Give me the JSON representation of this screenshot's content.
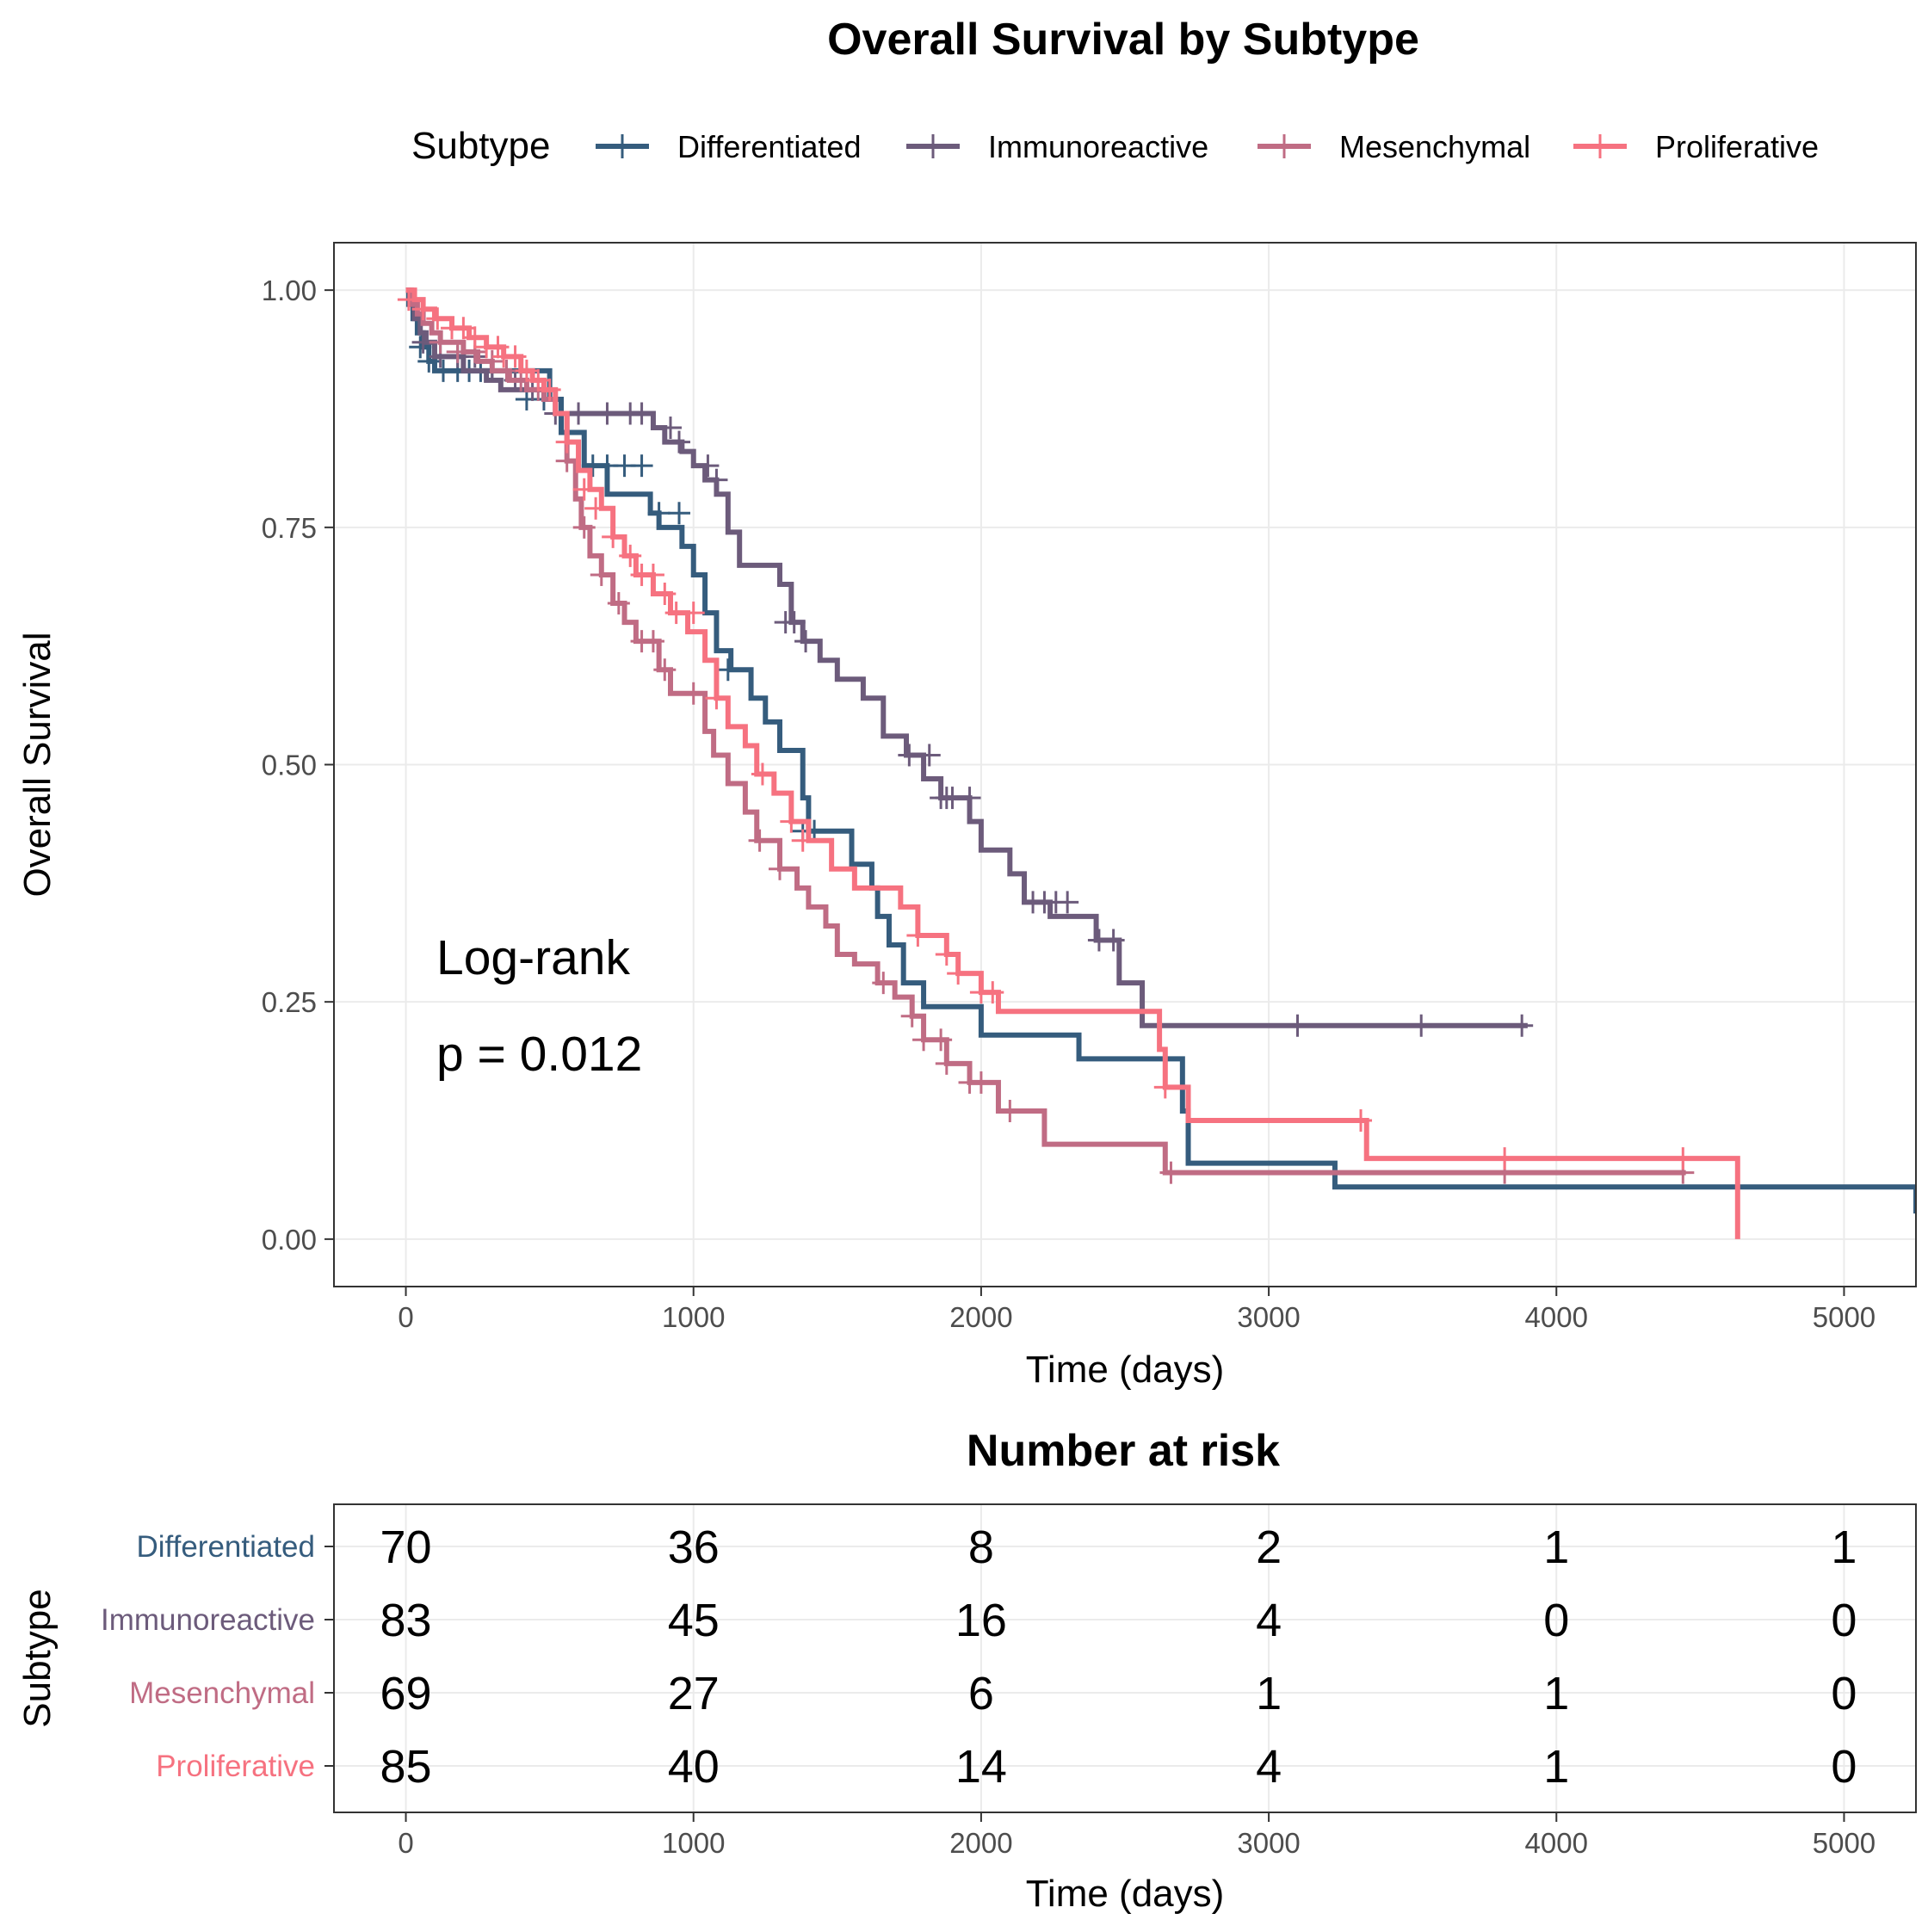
{
  "chart_data": [
    {
      "type": "line",
      "subtype": "kaplan-meier",
      "title": "Overall Survival by Subtype",
      "xlabel": "Time (days)",
      "ylabel": "Overall Survival",
      "xlim": [
        -250,
        5250
      ],
      "ylim": [
        -0.05,
        1.05
      ],
      "x_ticks": [
        0,
        1000,
        2000,
        3000,
        4000,
        5000
      ],
      "x_tick_labels": [
        "0",
        "1000",
        "2000",
        "3000",
        "4000",
        "5000"
      ],
      "y_ticks": [
        0,
        0.25,
        0.5,
        0.75,
        1.0
      ],
      "y_tick_labels": [
        "0.00",
        "0.25",
        "0.50",
        "0.75",
        "1.00"
      ],
      "grid": true,
      "legend": {
        "title": "Subtype",
        "position": "top"
      },
      "annotations": [
        "Log-rank",
        "p = 0.012"
      ],
      "series": [
        {
          "name": "Differentiated",
          "color": "#355c7d",
          "x": [
            0,
            10,
            25,
            40,
            60,
            80,
            100,
            500,
            540,
            620,
            700,
            850,
            880,
            960,
            1000,
            1040,
            1080,
            1130,
            1200,
            1250,
            1300,
            1380,
            1400,
            1550,
            1620,
            1640,
            1680,
            1730,
            1800,
            2000,
            2340,
            2700,
            2720,
            3230,
            5250
          ],
          "y": [
            1.0,
            0.985,
            0.97,
            0.955,
            0.94,
            0.925,
            0.915,
            0.885,
            0.85,
            0.815,
            0.785,
            0.765,
            0.75,
            0.73,
            0.7,
            0.66,
            0.62,
            0.6,
            0.57,
            0.545,
            0.515,
            0.465,
            0.43,
            0.395,
            0.37,
            0.34,
            0.31,
            0.27,
            0.245,
            0.215,
            0.19,
            0.135,
            0.08,
            0.055,
            0.027
          ],
          "censor_x": [
            50,
            80,
            130,
            180,
            220,
            260,
            300,
            420,
            480,
            650,
            700,
            760,
            820,
            880,
            950,
            1120,
            1380,
            1420
          ],
          "censor_y": [
            0.94,
            0.925,
            0.915,
            0.915,
            0.915,
            0.915,
            0.915,
            0.885,
            0.885,
            0.815,
            0.815,
            0.815,
            0.815,
            0.765,
            0.765,
            0.6,
            0.43,
            0.43
          ]
        },
        {
          "name": "Immunoreactive",
          "color": "#6c5b7b",
          "x": [
            0,
            15,
            30,
            50,
            70,
            100,
            200,
            280,
            330,
            480,
            520,
            860,
            900,
            960,
            1000,
            1040,
            1080,
            1120,
            1160,
            1300,
            1340,
            1380,
            1440,
            1500,
            1590,
            1660,
            1740,
            1800,
            1860,
            1960,
            2000,
            2100,
            2150,
            2240,
            2400,
            2480,
            2560,
            2600,
            3900
          ],
          "y": [
            1.0,
            0.985,
            0.97,
            0.955,
            0.945,
            0.93,
            0.915,
            0.905,
            0.895,
            0.885,
            0.87,
            0.855,
            0.84,
            0.83,
            0.815,
            0.8,
            0.785,
            0.745,
            0.71,
            0.69,
            0.65,
            0.63,
            0.61,
            0.59,
            0.57,
            0.53,
            0.51,
            0.485,
            0.465,
            0.44,
            0.41,
            0.385,
            0.355,
            0.34,
            0.315,
            0.27,
            0.225,
            0.225,
            0.225
          ],
          "censor_x": [
            60,
            120,
            180,
            240,
            300,
            380,
            440,
            520,
            600,
            700,
            780,
            820,
            920,
            950,
            1050,
            1080,
            1320,
            1350,
            1390,
            1750,
            1820,
            1860,
            1880,
            1900,
            1960,
            2180,
            2220,
            2260,
            2300,
            2410,
            2460,
            3100,
            3530,
            3880
          ],
          "censor_y": [
            0.945,
            0.93,
            0.93,
            0.93,
            0.915,
            0.905,
            0.895,
            0.87,
            0.87,
            0.87,
            0.87,
            0.87,
            0.855,
            0.84,
            0.815,
            0.8,
            0.65,
            0.65,
            0.63,
            0.51,
            0.51,
            0.465,
            0.465,
            0.465,
            0.465,
            0.355,
            0.355,
            0.355,
            0.355,
            0.315,
            0.315,
            0.225,
            0.225,
            0.225
          ]
        },
        {
          "name": "Mesenchymal",
          "color": "#c06c84",
          "x": [
            0,
            20,
            40,
            60,
            90,
            120,
            200,
            250,
            300,
            360,
            420,
            480,
            520,
            560,
            590,
            610,
            640,
            680,
            720,
            760,
            800,
            880,
            920,
            1040,
            1070,
            1120,
            1180,
            1220,
            1300,
            1360,
            1400,
            1460,
            1500,
            1560,
            1640,
            1700,
            1760,
            1800,
            1880,
            1960,
            2060,
            2220,
            2640,
            4450
          ],
          "y": [
            1.0,
            0.985,
            0.975,
            0.965,
            0.955,
            0.945,
            0.935,
            0.925,
            0.915,
            0.905,
            0.895,
            0.885,
            0.87,
            0.82,
            0.78,
            0.75,
            0.72,
            0.7,
            0.67,
            0.65,
            0.63,
            0.6,
            0.575,
            0.535,
            0.51,
            0.48,
            0.45,
            0.42,
            0.39,
            0.37,
            0.35,
            0.33,
            0.3,
            0.29,
            0.27,
            0.255,
            0.235,
            0.21,
            0.185,
            0.165,
            0.135,
            0.1,
            0.07,
            0.07
          ],
          "censor_x": [
            120,
            180,
            240,
            300,
            350,
            400,
            460,
            560,
            620,
            680,
            740,
            820,
            860,
            900,
            1000,
            1230,
            1300,
            1660,
            1760,
            1800,
            1860,
            1880,
            1960,
            2000,
            2100,
            2660,
            3820,
            4440
          ],
          "censor_y": [
            0.945,
            0.935,
            0.935,
            0.925,
            0.915,
            0.905,
            0.895,
            0.82,
            0.75,
            0.7,
            0.67,
            0.63,
            0.63,
            0.6,
            0.575,
            0.42,
            0.39,
            0.27,
            0.235,
            0.21,
            0.21,
            0.185,
            0.165,
            0.165,
            0.135,
            0.07,
            0.07,
            0.07
          ]
        },
        {
          "name": "Proliferative",
          "color": "#f67280",
          "x": [
            0,
            30,
            60,
            100,
            160,
            220,
            280,
            340,
            400,
            440,
            480,
            520,
            560,
            600,
            640,
            680,
            720,
            760,
            800,
            860,
            920,
            980,
            1040,
            1080,
            1120,
            1180,
            1220,
            1280,
            1340,
            1400,
            1480,
            1560,
            1720,
            1780,
            1880,
            1920,
            2000,
            2060,
            2160,
            2620,
            2640,
            2720,
            3340,
            4630
          ],
          "y": [
            1.0,
            0.99,
            0.98,
            0.97,
            0.96,
            0.95,
            0.94,
            0.93,
            0.915,
            0.905,
            0.895,
            0.87,
            0.84,
            0.81,
            0.79,
            0.77,
            0.74,
            0.72,
            0.7,
            0.68,
            0.66,
            0.64,
            0.61,
            0.57,
            0.54,
            0.52,
            0.49,
            0.47,
            0.44,
            0.42,
            0.39,
            0.37,
            0.35,
            0.32,
            0.3,
            0.28,
            0.26,
            0.24,
            0.24,
            0.2,
            0.16,
            0.125,
            0.085,
            0.0
          ],
          "censor_x": [
            10,
            60,
            110,
            160,
            200,
            240,
            280,
            320,
            340,
            380,
            420,
            460,
            500,
            560,
            620,
            660,
            720,
            780,
            820,
            860,
            900,
            940,
            1000,
            1080,
            1240,
            1340,
            1380,
            1780,
            1880,
            1920,
            2000,
            2040,
            2640,
            3320,
            3820,
            4440
          ],
          "censor_y": [
            0.99,
            0.98,
            0.97,
            0.96,
            0.96,
            0.95,
            0.94,
            0.94,
            0.93,
            0.93,
            0.915,
            0.905,
            0.895,
            0.84,
            0.79,
            0.77,
            0.74,
            0.72,
            0.7,
            0.7,
            0.68,
            0.66,
            0.66,
            0.57,
            0.49,
            0.44,
            0.42,
            0.32,
            0.3,
            0.28,
            0.26,
            0.26,
            0.16,
            0.125,
            0.085,
            0.085
          ]
        }
      ]
    },
    {
      "type": "table",
      "title": "Number at risk",
      "xlabel": "Time (days)",
      "ylabel": "Subtype",
      "xlim": [
        -250,
        5250
      ],
      "x_ticks": [
        0,
        1000,
        2000,
        3000,
        4000,
        5000
      ],
      "x_tick_labels": [
        "0",
        "1000",
        "2000",
        "3000",
        "4000",
        "5000"
      ],
      "grid": true,
      "rows": [
        {
          "label": "Differentiated",
          "color": "#355c7d",
          "values": [
            "70",
            "36",
            "8",
            "2",
            "1",
            "1"
          ]
        },
        {
          "label": "Immunoreactive",
          "color": "#6c5b7b",
          "values": [
            "83",
            "45",
            "16",
            "4",
            "0",
            "0"
          ]
        },
        {
          "label": "Mesenchymal",
          "color": "#c06c84",
          "values": [
            "69",
            "27",
            "6",
            "1",
            "1",
            "0"
          ]
        },
        {
          "label": "Proliferative",
          "color": "#f67280",
          "values": [
            "85",
            "40",
            "14",
            "4",
            "1",
            "0"
          ]
        }
      ]
    }
  ]
}
